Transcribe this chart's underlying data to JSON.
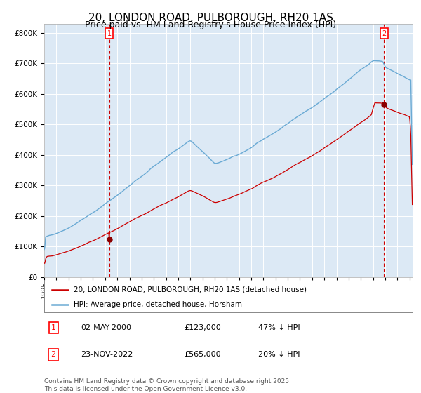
{
  "title": "20, LONDON ROAD, PULBOROUGH, RH20 1AS",
  "subtitle": "Price paid vs. HM Land Registry's House Price Index (HPI)",
  "title_fontsize": 11,
  "subtitle_fontsize": 9,
  "bg_color": "#dce9f5",
  "hpi_color": "#6aaad4",
  "price_color": "#cc0000",
  "marker_color": "#8b0000",
  "vline_color": "#cc0000",
  "yticks": [
    0,
    100,
    200,
    300,
    400,
    500,
    600,
    700,
    800
  ],
  "ylim": [
    0,
    830000
  ],
  "legend_line1": "20, LONDON ROAD, PULBOROUGH, RH20 1AS (detached house)",
  "legend_line2": "HPI: Average price, detached house, Horsham",
  "sale1_date_str": "02-MAY-2000",
  "sale1_price_str": "£123,000",
  "sale1_hpi_str": "47% ↓ HPI",
  "sale1_price_val": 123000,
  "sale1_year": 2000,
  "sale1_month": 5,
  "sale1_day": 2,
  "sale2_date_str": "23-NOV-2022",
  "sale2_price_str": "£565,000",
  "sale2_hpi_str": "20% ↓ HPI",
  "sale2_price_val": 565000,
  "sale2_year": 2022,
  "sale2_month": 11,
  "sale2_day": 23,
  "footer": "Contains HM Land Registry data © Crown copyright and database right 2025.\nThis data is licensed under the Open Government Licence v3.0.",
  "footer_fontsize": 6.5
}
